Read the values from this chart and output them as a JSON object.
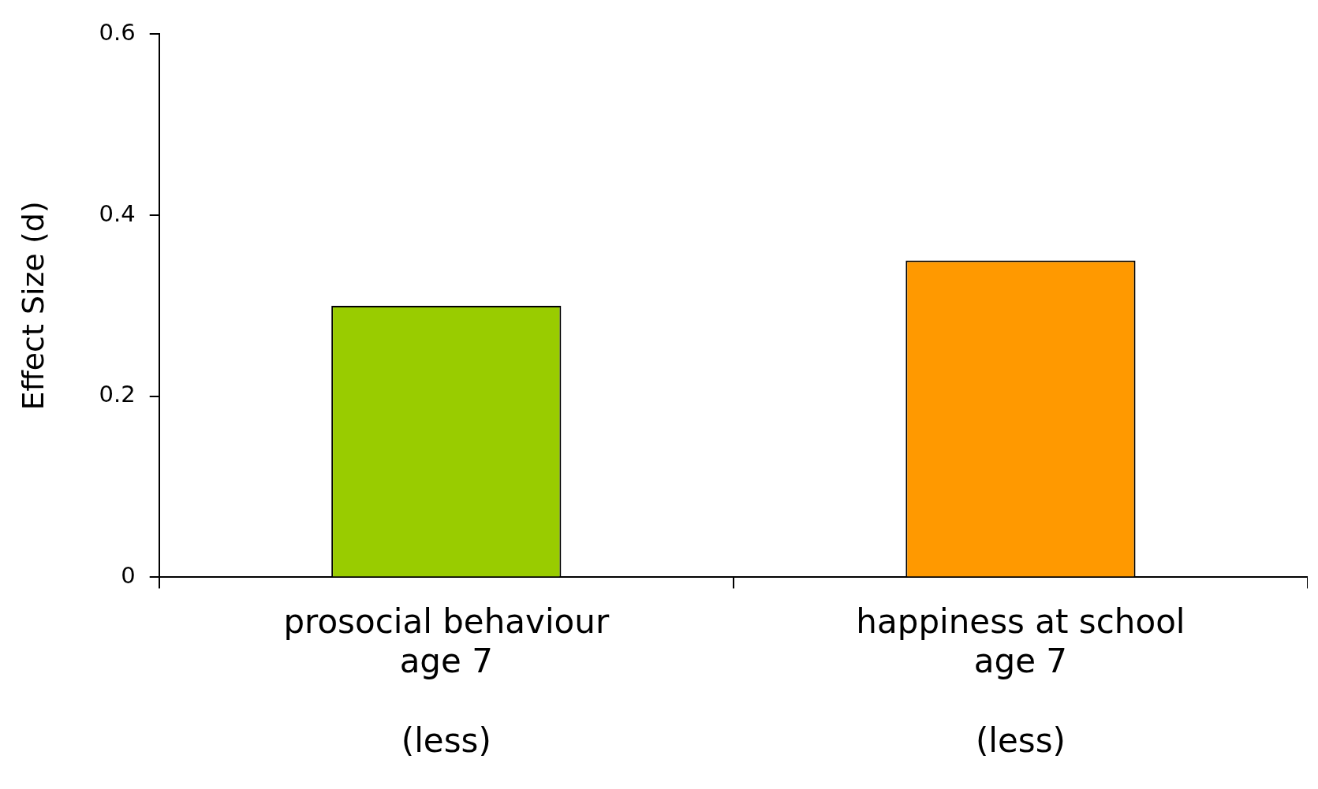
{
  "chart_data": {
    "type": "bar",
    "ylabel": "Effect Size (d)",
    "categories": [
      "prosocial behaviour\nage 7\n\n(less)",
      "happiness at school\nage 7\n\n(less)"
    ],
    "values": [
      0.3,
      0.35
    ],
    "colors": [
      "#99cc00",
      "#ff9900"
    ],
    "ylim": [
      0,
      0.6
    ],
    "yticks": [
      0,
      0.2,
      0.4,
      0.6
    ],
    "grid": false,
    "legend": false
  }
}
